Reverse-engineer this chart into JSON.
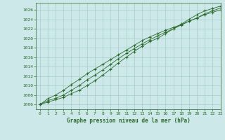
{
  "title": "Graphe pression niveau de la mer (hPa)",
  "bg_color": "#cce8e8",
  "grid_color": "#aacccc",
  "line_color": "#2d6a2d",
  "xlim": [
    -0.5,
    23
  ],
  "ylim": [
    1005.0,
    1027.5
  ],
  "yticks": [
    1006,
    1008,
    1010,
    1012,
    1014,
    1016,
    1018,
    1020,
    1022,
    1024,
    1026
  ],
  "xticks": [
    0,
    1,
    2,
    3,
    4,
    5,
    6,
    7,
    8,
    9,
    10,
    11,
    12,
    13,
    14,
    15,
    16,
    17,
    18,
    19,
    20,
    21,
    22,
    23
  ],
  "series": [
    [
      1006.0,
      1006.8,
      1007.3,
      1008.0,
      1009.0,
      1010.0,
      1011.2,
      1012.2,
      1013.3,
      1014.5,
      1015.7,
      1016.8,
      1017.8,
      1018.8,
      1019.7,
      1020.5,
      1021.3,
      1022.0,
      1022.8,
      1023.6,
      1024.3,
      1025.0,
      1025.5,
      1026.0
    ],
    [
      1006.0,
      1007.2,
      1008.0,
      1009.0,
      1010.2,
      1011.3,
      1012.5,
      1013.5,
      1014.5,
      1015.5,
      1016.5,
      1017.5,
      1018.5,
      1019.5,
      1020.3,
      1021.0,
      1021.7,
      1022.3,
      1022.9,
      1023.6,
      1024.3,
      1025.2,
      1025.8,
      1026.4
    ],
    [
      1006.0,
      1006.5,
      1007.0,
      1007.5,
      1008.3,
      1009.0,
      1010.0,
      1011.0,
      1012.2,
      1013.5,
      1014.8,
      1016.0,
      1017.2,
      1018.3,
      1019.3,
      1020.0,
      1021.0,
      1022.0,
      1023.0,
      1024.0,
      1025.0,
      1025.8,
      1026.3,
      1026.8
    ]
  ]
}
